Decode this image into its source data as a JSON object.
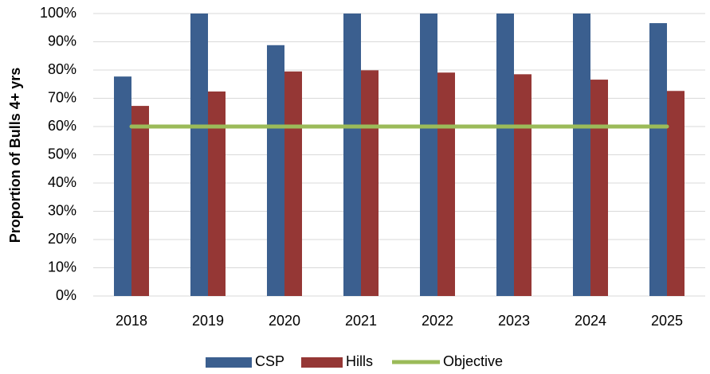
{
  "chart_data": {
    "type": "bar",
    "ylabel": "Proportion of Bulls 4+ yrs",
    "categories": [
      "2018",
      "2019",
      "2020",
      "2021",
      "2022",
      "2023",
      "2024",
      "2025"
    ],
    "series": [
      {
        "name": "CSP",
        "color": "#3b5f8f",
        "values": [
          77.7,
          100,
          88.8,
          100,
          100,
          100,
          100,
          96.6
        ]
      },
      {
        "name": "Hills",
        "color": "#953735",
        "values": [
          67.3,
          72.4,
          79.5,
          79.9,
          79.1,
          78.5,
          76.6,
          72.6
        ]
      },
      {
        "name": "Objective",
        "color": "#9bbb59",
        "type": "line",
        "values": [
          60,
          60,
          60,
          60,
          60,
          60,
          60,
          60
        ]
      }
    ],
    "ylim": [
      0,
      100
    ],
    "yticks": [
      {
        "value": 0,
        "label": "0%"
      },
      {
        "value": 10,
        "label": "10%"
      },
      {
        "value": 20,
        "label": "20%"
      },
      {
        "value": 30,
        "label": "30%"
      },
      {
        "value": 40,
        "label": "40%"
      },
      {
        "value": 50,
        "label": "50%"
      },
      {
        "value": 60,
        "label": "60%"
      },
      {
        "value": 70,
        "label": "70%"
      },
      {
        "value": 80,
        "label": "80%"
      },
      {
        "value": 90,
        "label": "90%"
      },
      {
        "value": 100,
        "label": "100%"
      }
    ],
    "grid": true
  }
}
